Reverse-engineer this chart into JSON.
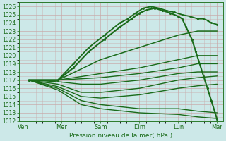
{
  "title": "",
  "xlabel": "Pression niveau de la mer( hPa )",
  "bg_color": "#cce8e8",
  "grid_color": "#c8a8a8",
  "line_color": "#1a6b1a",
  "ylim": [
    1012,
    1026.5
  ],
  "yticks": [
    1012,
    1013,
    1014,
    1015,
    1016,
    1017,
    1018,
    1019,
    1020,
    1021,
    1022,
    1023,
    1024,
    1025,
    1026
  ],
  "xtick_labels": [
    "Ven",
    "Mer",
    "Sam",
    "Dim",
    "Lun",
    "Mar"
  ],
  "xtick_positions": [
    0,
    1,
    2,
    3,
    4,
    5
  ],
  "xlim": [
    -0.1,
    5.15
  ],
  "lines": [
    {
      "x": [
        0.15,
        0.9,
        1.3,
        1.7,
        2.1,
        2.5,
        2.7,
        2.9,
        3.1,
        3.3,
        3.5,
        3.7,
        3.9,
        4.1,
        4.3,
        4.5,
        4.65,
        4.75,
        4.85,
        5.0
      ],
      "y": [
        1017,
        1017,
        1019,
        1021,
        1022.5,
        1024,
        1024.5,
        1025.2,
        1025.8,
        1026.0,
        1025.8,
        1025.5,
        1025.3,
        1025.0,
        1024.8,
        1024.5,
        1024.5,
        1024.3,
        1024.0,
        1023.8
      ],
      "marker": ".",
      "markersize": 2.0,
      "linewidth": 1.3
    },
    {
      "x": [
        0.15,
        0.9,
        1.3,
        1.7,
        2.1,
        2.5,
        2.8,
        3.0,
        3.2,
        3.4,
        3.6,
        3.8,
        4.0,
        4.1,
        4.2,
        4.35,
        4.45,
        4.55,
        4.65,
        4.75,
        4.85,
        5.0
      ],
      "y": [
        1017,
        1017,
        1018.5,
        1020.5,
        1022,
        1023.5,
        1024.5,
        1025.2,
        1025.6,
        1025.8,
        1025.5,
        1025.2,
        1024.8,
        1024.5,
        1023.5,
        1022.0,
        1020.5,
        1019.0,
        1017.5,
        1016.0,
        1014.5,
        1012.2
      ],
      "marker": ".",
      "markersize": 2.5,
      "linewidth": 1.5
    },
    {
      "x": [
        0.15,
        0.9,
        2.0,
        3.0,
        4.0,
        4.5,
        5.0
      ],
      "y": [
        1017,
        1017,
        1019.5,
        1021.0,
        1022.5,
        1023.0,
        1023.0
      ],
      "marker": null,
      "markersize": 0,
      "linewidth": 1.1
    },
    {
      "x": [
        0.15,
        0.9,
        2.0,
        3.0,
        4.0,
        4.5,
        5.0
      ],
      "y": [
        1017,
        1017,
        1017.8,
        1018.5,
        1019.5,
        1020.0,
        1020.0
      ],
      "marker": null,
      "markersize": 0,
      "linewidth": 1.0
    },
    {
      "x": [
        0.15,
        0.9,
        2.0,
        3.0,
        4.0,
        4.5,
        5.0
      ],
      "y": [
        1017,
        1017,
        1017.3,
        1017.8,
        1018.5,
        1019.0,
        1019.0
      ],
      "marker": null,
      "markersize": 0,
      "linewidth": 1.0
    },
    {
      "x": [
        0.15,
        0.9,
        1.5,
        2.0,
        3.0,
        4.0,
        4.5,
        5.0
      ],
      "y": [
        1017,
        1016.8,
        1016.5,
        1016.5,
        1017.0,
        1017.8,
        1018.0,
        1018.0
      ],
      "marker": null,
      "markersize": 0,
      "linewidth": 1.0
    },
    {
      "x": [
        0.15,
        0.9,
        1.5,
        2.0,
        3.0,
        4.0,
        4.5,
        5.0
      ],
      "y": [
        1017,
        1016.5,
        1015.5,
        1015.5,
        1016.0,
        1017.0,
        1017.3,
        1017.5
      ],
      "marker": null,
      "markersize": 0,
      "linewidth": 1.0
    },
    {
      "x": [
        0.15,
        0.9,
        1.5,
        2.0,
        3.0,
        4.0,
        4.5,
        5.0
      ],
      "y": [
        1017,
        1016.2,
        1015.0,
        1014.8,
        1015.2,
        1016.0,
        1016.3,
        1016.5
      ],
      "marker": null,
      "markersize": 0,
      "linewidth": 1.0
    },
    {
      "x": [
        0.15,
        0.9,
        1.5,
        2.0,
        3.0,
        4.0,
        4.5,
        5.0
      ],
      "y": [
        1017,
        1016.0,
        1014.5,
        1014.0,
        1013.5,
        1013.5,
        1013.2,
        1013.0
      ],
      "marker": null,
      "markersize": 0,
      "linewidth": 1.0
    },
    {
      "x": [
        0.15,
        0.9,
        1.5,
        2.0,
        3.0,
        4.0,
        4.5,
        5.0
      ],
      "y": [
        1017,
        1015.8,
        1014.0,
        1013.5,
        1013.0,
        1012.8,
        1012.5,
        1012.3
      ],
      "marker": null,
      "markersize": 0,
      "linewidth": 1.0
    }
  ]
}
